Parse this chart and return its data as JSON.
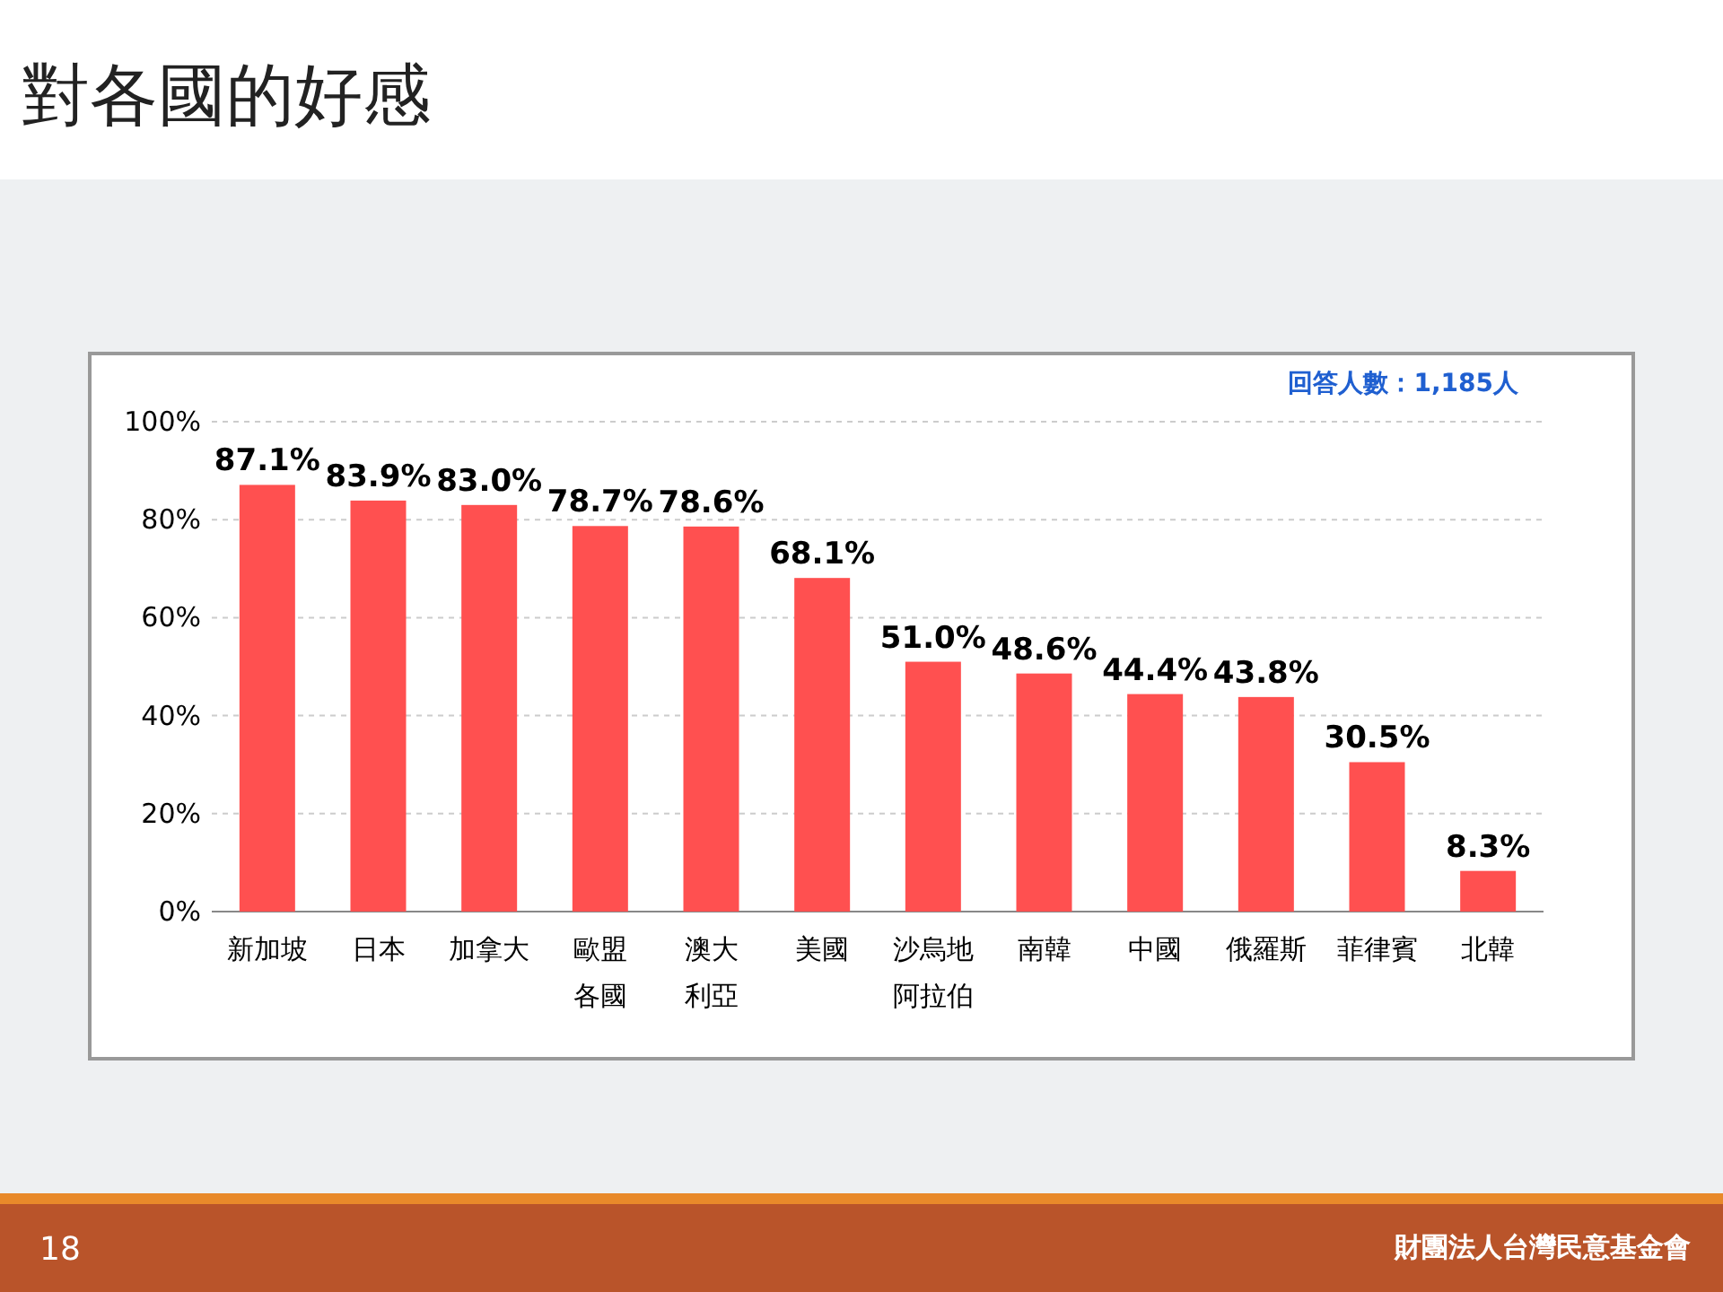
{
  "chart_data": {
    "type": "bar",
    "title": "對各國的好感",
    "categories": [
      "新加坡",
      "日本",
      "加拿大",
      "歐盟各國",
      "澳大利亞",
      "美國",
      "沙烏地阿拉伯",
      "南韓",
      "中國",
      "俄羅斯",
      "菲律賓",
      "北韓"
    ],
    "values": [
      87.1,
      83.9,
      83.0,
      78.7,
      78.6,
      68.1,
      51.0,
      48.6,
      44.4,
      43.8,
      30.5,
      8.3
    ],
    "value_labels": [
      "87.1%",
      "83.9%",
      "83.0%",
      "78.7%",
      "78.6%",
      "68.1%",
      "51.0%",
      "48.6%",
      "44.4%",
      "43.8%",
      "30.5%",
      "8.3%"
    ],
    "color": "#ff5050",
    "ylim": [
      0,
      100
    ],
    "yticks": [
      {
        "value": 0,
        "label": "0%"
      },
      {
        "value": 20,
        "label": "20%"
      },
      {
        "value": 40,
        "label": "40%"
      },
      {
        "value": 60,
        "label": "60%"
      },
      {
        "value": 80,
        "label": "80%"
      },
      {
        "value": 100,
        "label": "100%"
      }
    ],
    "grid": "y",
    "annotations": [
      "回答人數：1,185人",
      "18",
      "財團法人台灣民意基金會"
    ]
  }
}
